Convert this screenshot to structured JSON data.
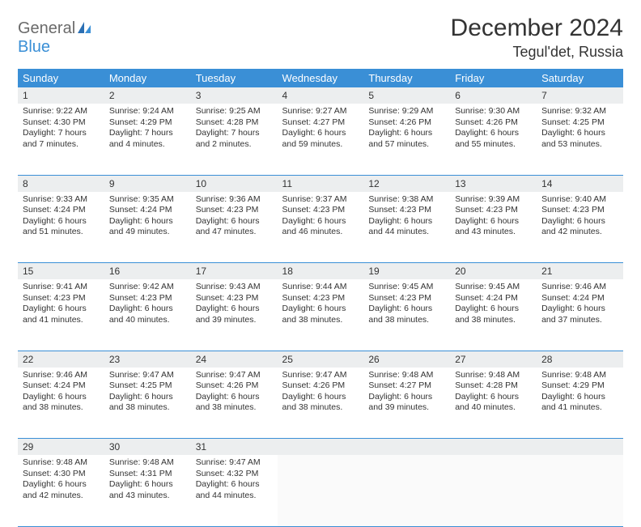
{
  "brand": {
    "word1": "General",
    "word2": "Blue"
  },
  "title": "December 2024",
  "location": "Tegul'det, Russia",
  "colors": {
    "header_bg": "#3a8fd6",
    "header_text": "#ffffff",
    "daynum_bg": "#eceeef",
    "border": "#3a8fd6",
    "text": "#333333",
    "logo_gray": "#6a6a6a",
    "logo_blue": "#3a8fd6",
    "background": "#ffffff"
  },
  "weekdays": [
    "Sunday",
    "Monday",
    "Tuesday",
    "Wednesday",
    "Thursday",
    "Friday",
    "Saturday"
  ],
  "days": [
    {
      "n": "1",
      "sr": "9:22 AM",
      "ss": "4:30 PM",
      "dl": "7 hours and 7 minutes."
    },
    {
      "n": "2",
      "sr": "9:24 AM",
      "ss": "4:29 PM",
      "dl": "7 hours and 4 minutes."
    },
    {
      "n": "3",
      "sr": "9:25 AM",
      "ss": "4:28 PM",
      "dl": "7 hours and 2 minutes."
    },
    {
      "n": "4",
      "sr": "9:27 AM",
      "ss": "4:27 PM",
      "dl": "6 hours and 59 minutes."
    },
    {
      "n": "5",
      "sr": "9:29 AM",
      "ss": "4:26 PM",
      "dl": "6 hours and 57 minutes."
    },
    {
      "n": "6",
      "sr": "9:30 AM",
      "ss": "4:26 PM",
      "dl": "6 hours and 55 minutes."
    },
    {
      "n": "7",
      "sr": "9:32 AM",
      "ss": "4:25 PM",
      "dl": "6 hours and 53 minutes."
    },
    {
      "n": "8",
      "sr": "9:33 AM",
      "ss": "4:24 PM",
      "dl": "6 hours and 51 minutes."
    },
    {
      "n": "9",
      "sr": "9:35 AM",
      "ss": "4:24 PM",
      "dl": "6 hours and 49 minutes."
    },
    {
      "n": "10",
      "sr": "9:36 AM",
      "ss": "4:23 PM",
      "dl": "6 hours and 47 minutes."
    },
    {
      "n": "11",
      "sr": "9:37 AM",
      "ss": "4:23 PM",
      "dl": "6 hours and 46 minutes."
    },
    {
      "n": "12",
      "sr": "9:38 AM",
      "ss": "4:23 PM",
      "dl": "6 hours and 44 minutes."
    },
    {
      "n": "13",
      "sr": "9:39 AM",
      "ss": "4:23 PM",
      "dl": "6 hours and 43 minutes."
    },
    {
      "n": "14",
      "sr": "9:40 AM",
      "ss": "4:23 PM",
      "dl": "6 hours and 42 minutes."
    },
    {
      "n": "15",
      "sr": "9:41 AM",
      "ss": "4:23 PM",
      "dl": "6 hours and 41 minutes."
    },
    {
      "n": "16",
      "sr": "9:42 AM",
      "ss": "4:23 PM",
      "dl": "6 hours and 40 minutes."
    },
    {
      "n": "17",
      "sr": "9:43 AM",
      "ss": "4:23 PM",
      "dl": "6 hours and 39 minutes."
    },
    {
      "n": "18",
      "sr": "9:44 AM",
      "ss": "4:23 PM",
      "dl": "6 hours and 38 minutes."
    },
    {
      "n": "19",
      "sr": "9:45 AM",
      "ss": "4:23 PM",
      "dl": "6 hours and 38 minutes."
    },
    {
      "n": "20",
      "sr": "9:45 AM",
      "ss": "4:24 PM",
      "dl": "6 hours and 38 minutes."
    },
    {
      "n": "21",
      "sr": "9:46 AM",
      "ss": "4:24 PM",
      "dl": "6 hours and 37 minutes."
    },
    {
      "n": "22",
      "sr": "9:46 AM",
      "ss": "4:24 PM",
      "dl": "6 hours and 38 minutes."
    },
    {
      "n": "23",
      "sr": "9:47 AM",
      "ss": "4:25 PM",
      "dl": "6 hours and 38 minutes."
    },
    {
      "n": "24",
      "sr": "9:47 AM",
      "ss": "4:26 PM",
      "dl": "6 hours and 38 minutes."
    },
    {
      "n": "25",
      "sr": "9:47 AM",
      "ss": "4:26 PM",
      "dl": "6 hours and 38 minutes."
    },
    {
      "n": "26",
      "sr": "9:48 AM",
      "ss": "4:27 PM",
      "dl": "6 hours and 39 minutes."
    },
    {
      "n": "27",
      "sr": "9:48 AM",
      "ss": "4:28 PM",
      "dl": "6 hours and 40 minutes."
    },
    {
      "n": "28",
      "sr": "9:48 AM",
      "ss": "4:29 PM",
      "dl": "6 hours and 41 minutes."
    },
    {
      "n": "29",
      "sr": "9:48 AM",
      "ss": "4:30 PM",
      "dl": "6 hours and 42 minutes."
    },
    {
      "n": "30",
      "sr": "9:48 AM",
      "ss": "4:31 PM",
      "dl": "6 hours and 43 minutes."
    },
    {
      "n": "31",
      "sr": "9:47 AM",
      "ss": "4:32 PM",
      "dl": "6 hours and 44 minutes."
    }
  ],
  "labels": {
    "sunrise": "Sunrise:",
    "sunset": "Sunset:",
    "daylight": "Daylight:"
  }
}
